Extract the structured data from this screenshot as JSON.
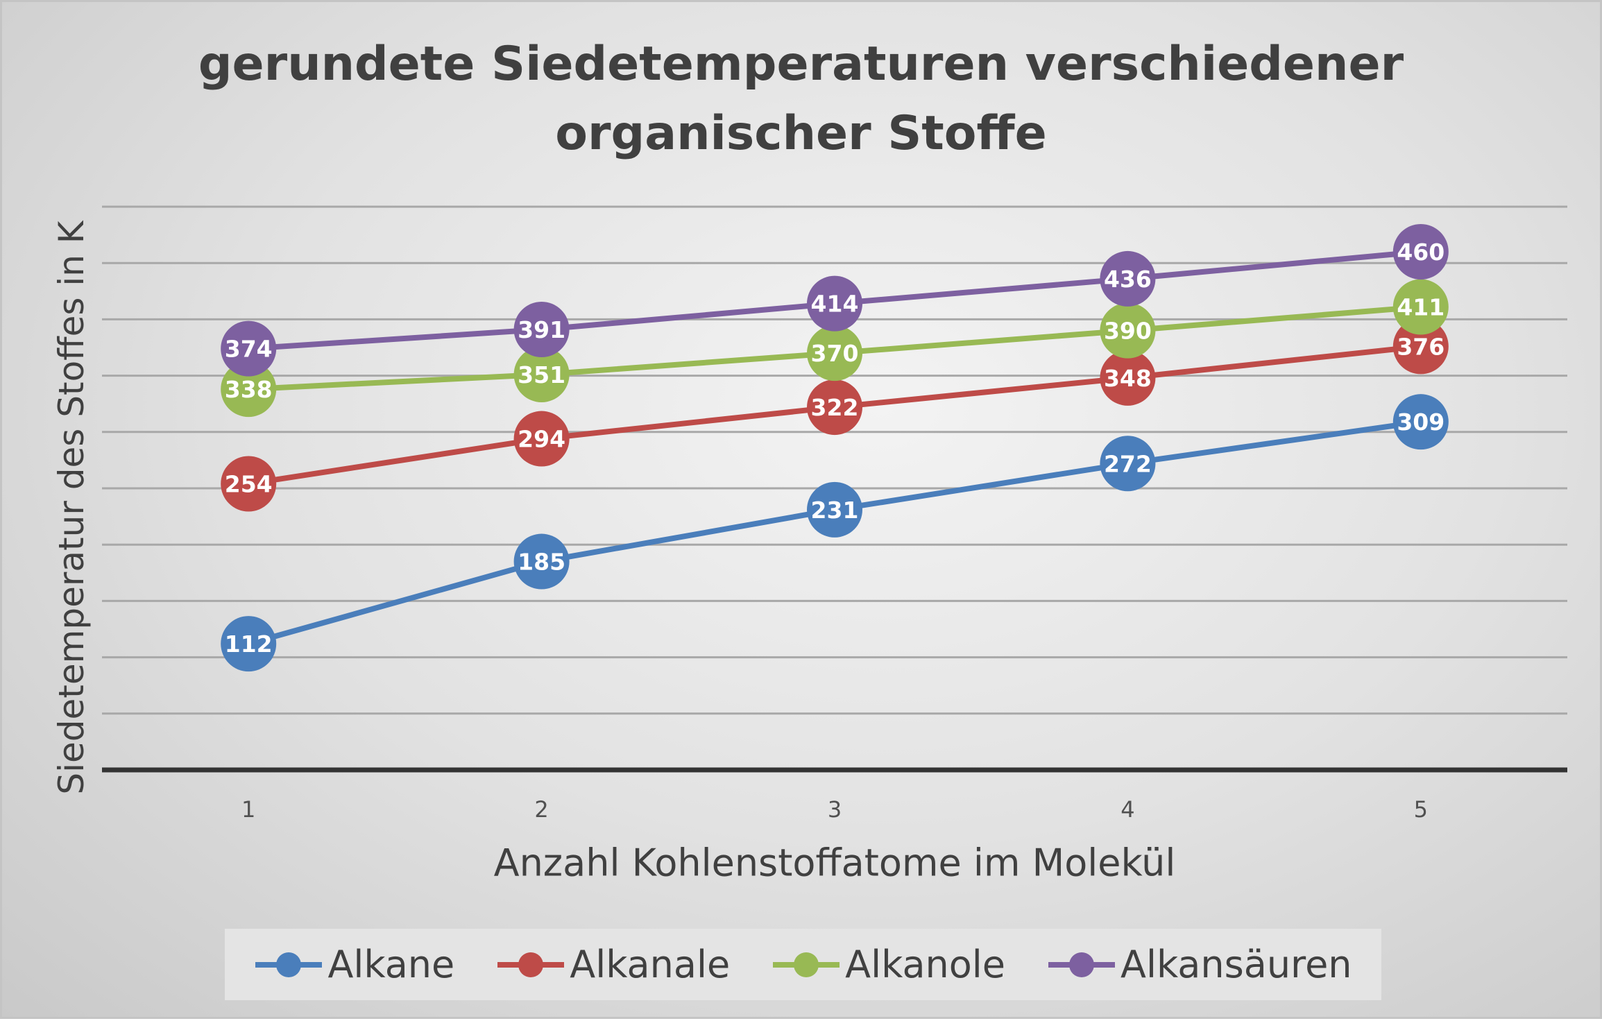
{
  "chart_data": {
    "type": "line",
    "title": "gerundete Siedetemperaturen verschiedener organischer Stoffe",
    "title_lines": [
      "gerundete Siedetemperaturen verschiedener",
      "organischer Stoffe"
    ],
    "xlabel": "Anzahl Kohlenstoffatome im Molekül",
    "ylabel": "Siedetemperatur des Stoffes in K",
    "categories": [
      "1",
      "2",
      "3",
      "4",
      "5"
    ],
    "ylim": [
      0,
      500
    ],
    "grid_step": 50,
    "grid": true,
    "legend_position": "bottom",
    "series": [
      {
        "name": "Alkane",
        "color": "#4a7ebb",
        "values": [
          112,
          185,
          231,
          272,
          309
        ]
      },
      {
        "name": "Alkanale",
        "color": "#be4b48",
        "values": [
          254,
          294,
          322,
          348,
          376
        ]
      },
      {
        "name": "Alkanole",
        "color": "#98b954",
        "values": [
          338,
          351,
          370,
          390,
          411
        ]
      },
      {
        "name": "Alkansäuren",
        "color": "#7d60a0",
        "values": [
          374,
          391,
          414,
          436,
          460
        ]
      }
    ]
  }
}
